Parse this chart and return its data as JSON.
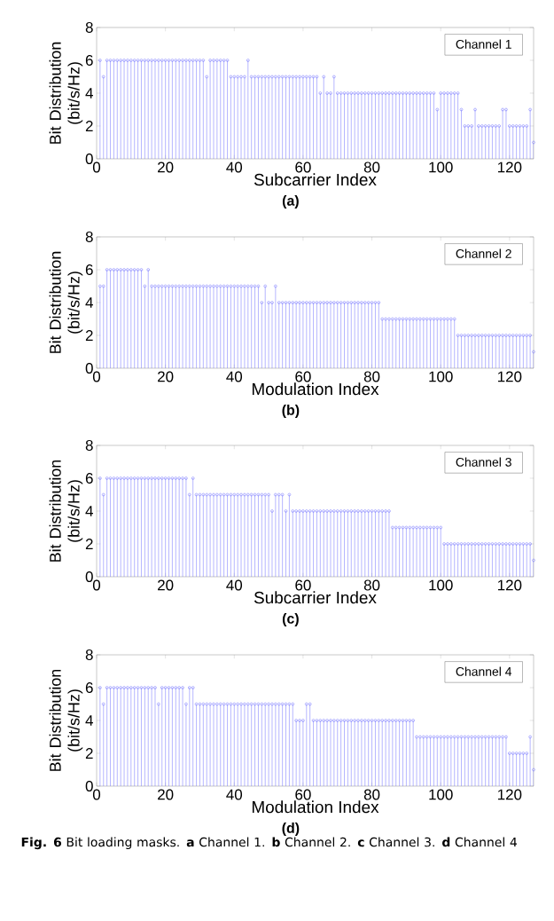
{
  "chart_data": [
    {
      "type": "lollipop",
      "xlabel": "Subcarrier Index",
      "ylabel": "Bit Distribution (bit/s/Hz)",
      "xlim": [
        0,
        127
      ],
      "ylim": [
        0,
        8
      ],
      "xticks": [
        0,
        20,
        40,
        60,
        80,
        100,
        120
      ],
      "yticks": [
        0,
        2,
        4,
        6,
        8
      ],
      "marker": "circle",
      "legend": "top right",
      "annotations": [
        "(a)"
      ],
      "x": [
        1,
        2,
        3,
        4,
        5,
        6,
        7,
        8,
        9,
        10,
        11,
        12,
        13,
        14,
        15,
        16,
        17,
        18,
        19,
        20,
        21,
        22,
        23,
        24,
        25,
        26,
        27,
        28,
        29,
        30,
        31,
        32,
        33,
        34,
        35,
        36,
        37,
        38,
        39,
        40,
        41,
        42,
        43,
        44,
        45,
        46,
        47,
        48,
        49,
        50,
        51,
        52,
        53,
        54,
        55,
        56,
        57,
        58,
        59,
        60,
        61,
        62,
        63,
        64,
        65,
        66,
        67,
        68,
        69,
        70,
        71,
        72,
        73,
        74,
        75,
        76,
        77,
        78,
        79,
        80,
        81,
        82,
        83,
        84,
        85,
        86,
        87,
        88,
        89,
        90,
        91,
        92,
        93,
        94,
        95,
        96,
        97,
        98,
        99,
        100,
        101,
        102,
        103,
        104,
        105,
        106,
        107,
        108,
        109,
        110,
        111,
        112,
        113,
        114,
        115,
        116,
        117,
        118,
        119,
        120,
        121,
        122,
        123,
        124,
        125,
        126,
        127
      ],
      "series": [
        {
          "name": "Channel 1",
          "color": "#6b6bff",
          "values": [
            6,
            5,
            6,
            6,
            6,
            6,
            6,
            6,
            6,
            6,
            6,
            6,
            6,
            6,
            6,
            6,
            6,
            6,
            6,
            6,
            6,
            6,
            6,
            6,
            6,
            6,
            6,
            6,
            6,
            6,
            6,
            5,
            6,
            6,
            6,
            6,
            6,
            6,
            5,
            5,
            5,
            5,
            5,
            6,
            5,
            5,
            5,
            5,
            5,
            5,
            5,
            5,
            5,
            5,
            5,
            5,
            5,
            5,
            5,
            5,
            5,
            5,
            5,
            5,
            4,
            5,
            4,
            4,
            5,
            4,
            4,
            4,
            4,
            4,
            4,
            4,
            4,
            4,
            4,
            4,
            4,
            4,
            4,
            4,
            4,
            4,
            4,
            4,
            4,
            4,
            4,
            4,
            4,
            4,
            4,
            4,
            4,
            4,
            3,
            4,
            4,
            4,
            4,
            4,
            4,
            3,
            2,
            2,
            2,
            3,
            2,
            2,
            2,
            2,
            2,
            2,
            2,
            3,
            3,
            2,
            2,
            2,
            2,
            2,
            2,
            3,
            1
          ]
        }
      ]
    },
    {
      "type": "lollipop",
      "xlabel": "Modulation Index",
      "ylabel": "Bit Distribution (bit/s/Hz)",
      "xlim": [
        0,
        127
      ],
      "ylim": [
        0,
        8
      ],
      "xticks": [
        0,
        20,
        40,
        60,
        80,
        100,
        120
      ],
      "yticks": [
        0,
        2,
        4,
        6,
        8
      ],
      "marker": "circle",
      "legend": "top right",
      "annotations": [
        "(b)"
      ],
      "x": [
        1,
        2,
        3,
        4,
        5,
        6,
        7,
        8,
        9,
        10,
        11,
        12,
        13,
        14,
        15,
        16,
        17,
        18,
        19,
        20,
        21,
        22,
        23,
        24,
        25,
        26,
        27,
        28,
        29,
        30,
        31,
        32,
        33,
        34,
        35,
        36,
        37,
        38,
        39,
        40,
        41,
        42,
        43,
        44,
        45,
        46,
        47,
        48,
        49,
        50,
        51,
        52,
        53,
        54,
        55,
        56,
        57,
        58,
        59,
        60,
        61,
        62,
        63,
        64,
        65,
        66,
        67,
        68,
        69,
        70,
        71,
        72,
        73,
        74,
        75,
        76,
        77,
        78,
        79,
        80,
        81,
        82,
        83,
        84,
        85,
        86,
        87,
        88,
        89,
        90,
        91,
        92,
        93,
        94,
        95,
        96,
        97,
        98,
        99,
        100,
        101,
        102,
        103,
        104,
        105,
        106,
        107,
        108,
        109,
        110,
        111,
        112,
        113,
        114,
        115,
        116,
        117,
        118,
        119,
        120,
        121,
        122,
        123,
        124,
        125,
        126,
        127
      ],
      "series": [
        {
          "name": "Channel 2",
          "color": "#6b6bff",
          "values": [
            5,
            5,
            6,
            6,
            6,
            6,
            6,
            6,
            6,
            6,
            6,
            6,
            6,
            5,
            6,
            5,
            5,
            5,
            5,
            5,
            5,
            5,
            5,
            5,
            5,
            5,
            5,
            5,
            5,
            5,
            5,
            5,
            5,
            5,
            5,
            5,
            5,
            5,
            5,
            5,
            5,
            5,
            5,
            5,
            5,
            5,
            5,
            4,
            5,
            4,
            4,
            5,
            4,
            4,
            4,
            4,
            4,
            4,
            4,
            4,
            4,
            4,
            4,
            4,
            4,
            4,
            4,
            4,
            4,
            4,
            4,
            4,
            4,
            4,
            4,
            4,
            4,
            4,
            4,
            4,
            4,
            4,
            3,
            3,
            3,
            3,
            3,
            3,
            3,
            3,
            3,
            3,
            3,
            3,
            3,
            3,
            3,
            3,
            3,
            3,
            3,
            3,
            3,
            3,
            2,
            2,
            2,
            2,
            2,
            2,
            2,
            2,
            2,
            2,
            2,
            2,
            2,
            2,
            2,
            2,
            2,
            2,
            2,
            2,
            2,
            2,
            1
          ]
        }
      ]
    },
    {
      "type": "lollipop",
      "xlabel": "Subcarrier Index",
      "ylabel": "Bit Distribution (bit/s/Hz)",
      "xlim": [
        0,
        127
      ],
      "ylim": [
        0,
        8
      ],
      "xticks": [
        0,
        20,
        40,
        60,
        80,
        100,
        120
      ],
      "yticks": [
        0,
        2,
        4,
        6,
        8
      ],
      "marker": "circle",
      "legend": "top right",
      "annotations": [
        "(c)"
      ],
      "x": [
        1,
        2,
        3,
        4,
        5,
        6,
        7,
        8,
        9,
        10,
        11,
        12,
        13,
        14,
        15,
        16,
        17,
        18,
        19,
        20,
        21,
        22,
        23,
        24,
        25,
        26,
        27,
        28,
        29,
        30,
        31,
        32,
        33,
        34,
        35,
        36,
        37,
        38,
        39,
        40,
        41,
        42,
        43,
        44,
        45,
        46,
        47,
        48,
        49,
        50,
        51,
        52,
        53,
        54,
        55,
        56,
        57,
        58,
        59,
        60,
        61,
        62,
        63,
        64,
        65,
        66,
        67,
        68,
        69,
        70,
        71,
        72,
        73,
        74,
        75,
        76,
        77,
        78,
        79,
        80,
        81,
        82,
        83,
        84,
        85,
        86,
        87,
        88,
        89,
        90,
        91,
        92,
        93,
        94,
        95,
        96,
        97,
        98,
        99,
        100,
        101,
        102,
        103,
        104,
        105,
        106,
        107,
        108,
        109,
        110,
        111,
        112,
        113,
        114,
        115,
        116,
        117,
        118,
        119,
        120,
        121,
        122,
        123,
        124,
        125,
        126,
        127
      ],
      "series": [
        {
          "name": "Channel 3",
          "color": "#6b6bff",
          "values": [
            6,
            5,
            6,
            6,
            6,
            6,
            6,
            6,
            6,
            6,
            6,
            6,
            6,
            6,
            6,
            6,
            6,
            6,
            6,
            6,
            6,
            6,
            6,
            6,
            6,
            6,
            5,
            6,
            5,
            5,
            5,
            5,
            5,
            5,
            5,
            5,
            5,
            5,
            5,
            5,
            5,
            5,
            5,
            5,
            5,
            5,
            5,
            5,
            5,
            5,
            4,
            5,
            5,
            5,
            4,
            5,
            4,
            4,
            4,
            4,
            4,
            4,
            4,
            4,
            4,
            4,
            4,
            4,
            4,
            4,
            4,
            4,
            4,
            4,
            4,
            4,
            4,
            4,
            4,
            4,
            4,
            4,
            4,
            4,
            4,
            3,
            3,
            3,
            3,
            3,
            3,
            3,
            3,
            3,
            3,
            3,
            3,
            3,
            3,
            3,
            2,
            2,
            2,
            2,
            2,
            2,
            2,
            2,
            2,
            2,
            2,
            2,
            2,
            2,
            2,
            2,
            2,
            2,
            2,
            2,
            2,
            2,
            2,
            2,
            2,
            2,
            1
          ]
        }
      ]
    },
    {
      "type": "lollipop",
      "xlabel": "Modulation Index",
      "ylabel": "Bit Distribution (bit/s/Hz)",
      "xlim": [
        0,
        127
      ],
      "ylim": [
        0,
        8
      ],
      "xticks": [
        0,
        20,
        40,
        60,
        80,
        100,
        120
      ],
      "yticks": [
        0,
        2,
        4,
        6,
        8
      ],
      "marker": "circle",
      "legend": "top right",
      "annotations": [
        "(d)",
        "**Fig. 6** Bit loading masks. **a** Channel 1. **b** Channel 2. **c** Channel 3. **d** Channel 4"
      ],
      "x": [
        1,
        2,
        3,
        4,
        5,
        6,
        7,
        8,
        9,
        10,
        11,
        12,
        13,
        14,
        15,
        16,
        17,
        18,
        19,
        20,
        21,
        22,
        23,
        24,
        25,
        26,
        27,
        28,
        29,
        30,
        31,
        32,
        33,
        34,
        35,
        36,
        37,
        38,
        39,
        40,
        41,
        42,
        43,
        44,
        45,
        46,
        47,
        48,
        49,
        50,
        51,
        52,
        53,
        54,
        55,
        56,
        57,
        58,
        59,
        60,
        61,
        62,
        63,
        64,
        65,
        66,
        67,
        68,
        69,
        70,
        71,
        72,
        73,
        74,
        75,
        76,
        77,
        78,
        79,
        80,
        81,
        82,
        83,
        84,
        85,
        86,
        87,
        88,
        89,
        90,
        91,
        92,
        93,
        94,
        95,
        96,
        97,
        98,
        99,
        100,
        101,
        102,
        103,
        104,
        105,
        106,
        107,
        108,
        109,
        110,
        111,
        112,
        113,
        114,
        115,
        116,
        117,
        118,
        119,
        120,
        121,
        122,
        123,
        124,
        125,
        126,
        127
      ],
      "series": [
        {
          "name": "Channel 4",
          "color": "#6b6bff",
          "values": [
            6,
            5,
            6,
            6,
            6,
            6,
            6,
            6,
            6,
            6,
            6,
            6,
            6,
            6,
            6,
            6,
            6,
            5,
            6,
            6,
            6,
            6,
            6,
            6,
            6,
            5,
            6,
            6,
            5,
            5,
            5,
            5,
            5,
            5,
            5,
            5,
            5,
            5,
            5,
            5,
            5,
            5,
            5,
            5,
            5,
            5,
            5,
            5,
            5,
            5,
            5,
            5,
            5,
            5,
            5,
            5,
            5,
            4,
            4,
            4,
            5,
            5,
            4,
            4,
            4,
            4,
            4,
            4,
            4,
            4,
            4,
            4,
            4,
            4,
            4,
            4,
            4,
            4,
            4,
            4,
            4,
            4,
            4,
            4,
            4,
            4,
            4,
            4,
            4,
            4,
            4,
            4,
            3,
            3,
            3,
            3,
            3,
            3,
            3,
            3,
            3,
            3,
            3,
            3,
            3,
            3,
            3,
            3,
            3,
            3,
            3,
            3,
            3,
            3,
            3,
            3,
            3,
            3,
            3,
            2,
            2,
            2,
            2,
            2,
            2,
            3,
            1
          ]
        }
      ]
    }
  ]
}
